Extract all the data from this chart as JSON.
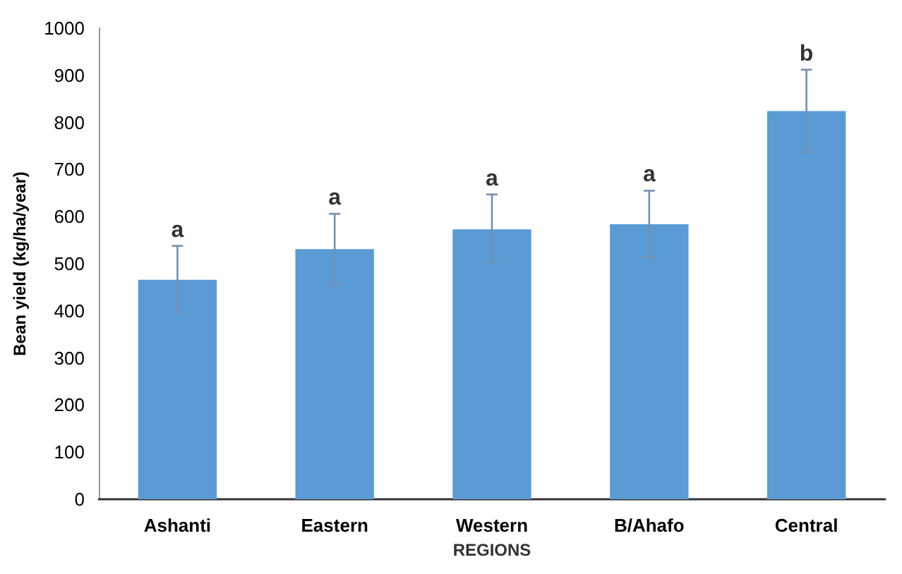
{
  "chart_data": {
    "type": "bar",
    "xlabel": "REGIONS",
    "ylabel": "Bean yield (kg/ha/year)",
    "categories": [
      "Ashanti",
      "Eastern",
      "Western",
      "B/Ahafo",
      "Central"
    ],
    "values": [
      466,
      531,
      573,
      584,
      824
    ],
    "errors": [
      [
        397,
        538
      ],
      [
        454,
        606
      ],
      [
        500,
        647
      ],
      [
        514,
        655
      ],
      [
        737,
        912
      ]
    ],
    "color": "#5b9bd5",
    "ylim": [
      0,
      1000
    ],
    "yticks": [
      0,
      100,
      200,
      300,
      400,
      500,
      600,
      700,
      800,
      900,
      1000
    ],
    "grid": false,
    "annotations": [
      {
        "text": "a",
        "x": "Ashanti",
        "y": 538
      },
      {
        "text": "a",
        "x": "Eastern",
        "y": 606
      },
      {
        "text": "a",
        "x": "Western",
        "y": 647
      },
      {
        "text": "a",
        "x": "B/Ahafo",
        "y": 655
      },
      {
        "text": "b",
        "x": "Central",
        "y": 912
      }
    ]
  }
}
